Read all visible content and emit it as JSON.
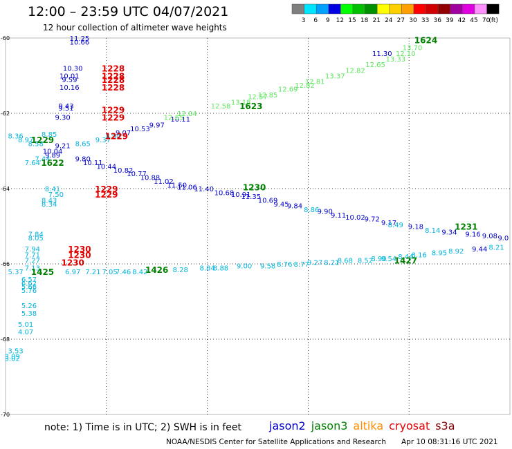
{
  "header": {
    "title": "12:00 – 23:59 UTC 04/07/2021",
    "subtitle": "12 hour collection of altimeter wave heights"
  },
  "colorbar": {
    "unit_label": "(ft)",
    "levels": [
      {
        "label": "3",
        "color": "#7f7f7f"
      },
      {
        "label": "6",
        "color": "#00e5ff"
      },
      {
        "label": "9",
        "color": "#00a0ff"
      },
      {
        "label": "12",
        "color": "#0000e0"
      },
      {
        "label": "15",
        "color": "#00ff00"
      },
      {
        "label": "18",
        "color": "#00c000"
      },
      {
        "label": "21",
        "color": "#009000"
      },
      {
        "label": "24",
        "color": "#ffff00"
      },
      {
        "label": "27",
        "color": "#ffd000"
      },
      {
        "label": "30",
        "color": "#ffa000"
      },
      {
        "label": "33",
        "color": "#ff0000"
      },
      {
        "label": "36",
        "color": "#d00000"
      },
      {
        "label": "39",
        "color": "#900000"
      },
      {
        "label": "42",
        "color": "#a000a0"
      },
      {
        "label": "45",
        "color": "#e000e0"
      },
      {
        "label": "70",
        "color": "#ff90ff"
      },
      {
        "label": "",
        "color": "#000000"
      }
    ]
  },
  "map": {
    "lon_ticks": [
      "-30",
      "-27",
      "-24",
      "-21",
      "-18",
      "-15"
    ],
    "lat_ticks": [
      "-60",
      "-62",
      "-64",
      "-66",
      "-68",
      "-70"
    ],
    "lon_range": [
      -30,
      -15
    ],
    "lat_range": [
      -60,
      -70
    ],
    "series_colors": {
      "jason2": "#0000c8",
      "jason3": "#008000",
      "altika": "#ff8c00",
      "cryosat": "#e00000",
      "s3a": "#800000",
      "cyan": "#00b4dc",
      "green": "#5ae65a"
    },
    "time_labels": [
      {
        "text": "1228",
        "lon": -26.8,
        "lat": -60.8,
        "color": "cryosat"
      },
      {
        "text": "1228",
        "lon": -26.8,
        "lat": -61.0,
        "color": "cryosat"
      },
      {
        "text": "1228",
        "lon": -26.8,
        "lat": -61.1,
        "color": "cryosat"
      },
      {
        "text": "1228",
        "lon": -26.8,
        "lat": -61.3,
        "color": "cryosat"
      },
      {
        "text": "1229",
        "lon": -26.8,
        "lat": -61.9,
        "color": "cryosat"
      },
      {
        "text": "1229",
        "lon": -26.8,
        "lat": -62.1,
        "color": "cryosat"
      },
      {
        "text": "1229",
        "lon": -26.7,
        "lat": -62.6,
        "color": "cryosat"
      },
      {
        "text": "1229",
        "lon": -28.9,
        "lat": -62.7,
        "color": "jason3"
      },
      {
        "text": "1622",
        "lon": -28.6,
        "lat": -63.3,
        "color": "jason3"
      },
      {
        "text": "1229",
        "lon": -27.0,
        "lat": -64.0,
        "color": "cryosat"
      },
      {
        "text": "1229",
        "lon": -27.0,
        "lat": -64.15,
        "color": "cryosat"
      },
      {
        "text": "1230",
        "lon": -27.8,
        "lat": -65.6,
        "color": "cryosat"
      },
      {
        "text": "1230",
        "lon": -27.8,
        "lat": -65.75,
        "color": "cryosat"
      },
      {
        "text": "1230",
        "lon": -28.0,
        "lat": -65.95,
        "color": "cryosat"
      },
      {
        "text": "1425",
        "lon": -28.9,
        "lat": -66.2,
        "color": "jason3"
      },
      {
        "text": "1426",
        "lon": -25.5,
        "lat": -66.15,
        "color": "jason3"
      },
      {
        "text": "1427",
        "lon": -18.1,
        "lat": -65.9,
        "color": "jason3"
      },
      {
        "text": "1230",
        "lon": -22.6,
        "lat": -63.95,
        "color": "jason3"
      },
      {
        "text": "1231",
        "lon": -16.3,
        "lat": -65.0,
        "color": "jason3"
      },
      {
        "text": "1623",
        "lon": -22.7,
        "lat": -61.8,
        "color": "jason3"
      },
      {
        "text": "1624",
        "lon": -17.5,
        "lat": -60.05,
        "color": "jason3"
      }
    ],
    "tracks": [
      {
        "color": "jason2",
        "points": [
          {
            "v": "11.25",
            "lon": -27.8,
            "lat": -60.0
          },
          {
            "v": "10.66",
            "lon": -27.8,
            "lat": -60.1
          },
          {
            "v": "10.30",
            "lon": -28.0,
            "lat": -60.8
          },
          {
            "v": "10.01",
            "lon": -28.1,
            "lat": -61.0
          },
          {
            "v": "9.59",
            "lon": -28.1,
            "lat": -61.1
          },
          {
            "v": "10.16",
            "lon": -28.1,
            "lat": -61.3
          },
          {
            "v": "9.43",
            "lon": -28.2,
            "lat": -61.8
          },
          {
            "v": "9.51",
            "lon": -28.2,
            "lat": -61.85
          },
          {
            "v": "9.30",
            "lon": -28.3,
            "lat": -62.1
          },
          {
            "v": "9.21",
            "lon": -28.3,
            "lat": -62.85
          },
          {
            "v": "10.04",
            "lon": -28.6,
            "lat": -63.0
          },
          {
            "v": "9.89",
            "lon": -28.6,
            "lat": -63.1
          },
          {
            "v": "9.80",
            "lon": -27.7,
            "lat": -63.2
          },
          {
            "v": "10.11",
            "lon": -27.4,
            "lat": -63.3
          },
          {
            "v": "10.44",
            "lon": -27.0,
            "lat": -63.4
          },
          {
            "v": "10.82",
            "lon": -26.5,
            "lat": -63.5
          },
          {
            "v": "10.77",
            "lon": -26.1,
            "lat": -63.6
          },
          {
            "v": "10.88",
            "lon": -25.7,
            "lat": -63.7
          },
          {
            "v": "11.02",
            "lon": -25.3,
            "lat": -63.8
          },
          {
            "v": "11.50",
            "lon": -24.9,
            "lat": -63.9
          },
          {
            "v": "11.06",
            "lon": -24.6,
            "lat": -63.95
          },
          {
            "v": "11.40",
            "lon": -24.1,
            "lat": -64.0
          },
          {
            "v": "10.68",
            "lon": -23.5,
            "lat": -64.1
          },
          {
            "v": "10.91",
            "lon": -23.0,
            "lat": -64.15
          },
          {
            "v": "11.35",
            "lon": -22.7,
            "lat": -64.2
          },
          {
            "v": "10.69",
            "lon": -22.2,
            "lat": -64.3
          },
          {
            "v": "9.45",
            "lon": -21.8,
            "lat": -64.4
          },
          {
            "v": "9.84",
            "lon": -21.4,
            "lat": -64.45
          },
          {
            "v": "9.90",
            "lon": -20.5,
            "lat": -64.6
          },
          {
            "v": "9.11",
            "lon": -20.1,
            "lat": -64.7
          },
          {
            "v": "10.02",
            "lon": -19.6,
            "lat": -64.75
          },
          {
            "v": "9.72",
            "lon": -19.1,
            "lat": -64.8
          },
          {
            "v": "9.17",
            "lon": -18.6,
            "lat": -64.9
          },
          {
            "v": "9.18",
            "lon": -17.8,
            "lat": -65.0
          },
          {
            "v": "9.34",
            "lon": -16.8,
            "lat": -65.15
          },
          {
            "v": "9.16",
            "lon": -16.1,
            "lat": -65.2
          },
          {
            "v": "9.08",
            "lon": -15.6,
            "lat": -65.25
          },
          {
            "v": "9.0",
            "lon": -15.2,
            "lat": -65.3
          },
          {
            "v": "9.44",
            "lon": -15.9,
            "lat": -65.6
          },
          {
            "v": "9.07",
            "lon": -26.5,
            "lat": -62.5
          },
          {
            "v": "10.53",
            "lon": -26.0,
            "lat": -62.4
          },
          {
            "v": "9.97",
            "lon": -25.5,
            "lat": -62.3
          },
          {
            "v": "10.11",
            "lon": -24.8,
            "lat": -62.15
          },
          {
            "v": "11.30",
            "lon": -18.8,
            "lat": -60.4
          }
        ]
      },
      {
        "color": "cyan",
        "points": [
          {
            "v": "8.36",
            "lon": -29.7,
            "lat": -62.6
          },
          {
            "v": "8.97",
            "lon": -29.4,
            "lat": -62.7
          },
          {
            "v": "8.85",
            "lon": -28.7,
            "lat": -62.55
          },
          {
            "v": "8.58",
            "lon": -29.1,
            "lat": -62.8
          },
          {
            "v": "8.65",
            "lon": -27.7,
            "lat": -62.8
          },
          {
            "v": "9.37",
            "lon": -27.1,
            "lat": -62.7
          },
          {
            "v": "8.94",
            "lon": -26.8,
            "lat": -62.6
          },
          {
            "v": "7.64",
            "lon": -29.2,
            "lat": -63.3
          },
          {
            "v": "7.44",
            "lon": -28.9,
            "lat": -63.2
          },
          {
            "v": "8.41",
            "lon": -28.6,
            "lat": -64.0
          },
          {
            "v": "7.50",
            "lon": -28.5,
            "lat": -64.15
          },
          {
            "v": "8.43",
            "lon": -28.7,
            "lat": -64.3
          },
          {
            "v": "8.34",
            "lon": -28.7,
            "lat": -64.4
          },
          {
            "v": "7.84",
            "lon": -29.1,
            "lat": -65.2
          },
          {
            "v": "8.05",
            "lon": -29.1,
            "lat": -65.3
          },
          {
            "v": "7.94",
            "lon": -29.2,
            "lat": -65.6
          },
          {
            "v": "7.71",
            "lon": -29.2,
            "lat": -65.75
          },
          {
            "v": "7.27",
            "lon": -29.2,
            "lat": -65.9
          },
          {
            "v": "7.13",
            "lon": -29.2,
            "lat": -66.1
          },
          {
            "v": "5.37",
            "lon": -29.7,
            "lat": -66.2
          },
          {
            "v": "6.57",
            "lon": -29.3,
            "lat": -66.4
          },
          {
            "v": "6.62",
            "lon": -29.3,
            "lat": -66.5
          },
          {
            "v": "5.66",
            "lon": -29.3,
            "lat": -66.6
          },
          {
            "v": "5.76",
            "lon": -29.3,
            "lat": -66.7
          },
          {
            "v": "5.26",
            "lon": -29.3,
            "lat": -67.1
          },
          {
            "v": "5.38",
            "lon": -29.3,
            "lat": -67.3
          },
          {
            "v": "5.01",
            "lon": -29.4,
            "lat": -67.6
          },
          {
            "v": "4.07",
            "lon": -29.4,
            "lat": -67.8
          },
          {
            "v": "3.53",
            "lon": -29.7,
            "lat": -68.3
          },
          {
            "v": "3.09",
            "lon": -29.8,
            "lat": -68.45
          },
          {
            "v": "3.02",
            "lon": -29.8,
            "lat": -68.5
          },
          {
            "v": "6.97",
            "lon": -28.0,
            "lat": -66.2
          },
          {
            "v": "7.21",
            "lon": -27.4,
            "lat": -66.2
          },
          {
            "v": "7.05",
            "lon": -26.9,
            "lat": -66.2
          },
          {
            "v": "7.46",
            "lon": -26.5,
            "lat": -66.2
          },
          {
            "v": "8.42",
            "lon": -26.0,
            "lat": -66.2
          },
          {
            "v": "8.28",
            "lon": -24.8,
            "lat": -66.15
          },
          {
            "v": "8.84",
            "lon": -24.0,
            "lat": -66.1
          },
          {
            "v": "8.88",
            "lon": -23.6,
            "lat": -66.1
          },
          {
            "v": "9.00",
            "lon": -22.9,
            "lat": -66.05
          },
          {
            "v": "9.58",
            "lon": -22.2,
            "lat": -66.05
          },
          {
            "v": "8.76",
            "lon": -21.7,
            "lat": -66.0
          },
          {
            "v": "8.77",
            "lon": -21.2,
            "lat": -66.0
          },
          {
            "v": "9.27",
            "lon": -20.8,
            "lat": -65.95
          },
          {
            "v": "8.21",
            "lon": -20.3,
            "lat": -65.95
          },
          {
            "v": "8.68",
            "lon": -19.9,
            "lat": -65.9
          },
          {
            "v": "8.52",
            "lon": -19.3,
            "lat": -65.9
          },
          {
            "v": "8.90",
            "lon": -18.9,
            "lat": -65.85
          },
          {
            "v": "8.44",
            "lon": -18.1,
            "lat": -65.8
          },
          {
            "v": "8.16",
            "lon": -17.7,
            "lat": -65.75
          },
          {
            "v": "8.95",
            "lon": -17.1,
            "lat": -65.7
          },
          {
            "v": "8.92",
            "lon": -16.6,
            "lat": -65.65
          },
          {
            "v": "8.21",
            "lon": -15.4,
            "lat": -65.55
          },
          {
            "v": "8.49",
            "lon": -18.4,
            "lat": -64.95
          },
          {
            "v": "8.14",
            "lon": -17.3,
            "lat": -65.1
          },
          {
            "v": "8.86",
            "lon": -20.9,
            "lat": -64.55
          },
          {
            "v": "9.54",
            "lon": -18.6,
            "lat": -65.85
          }
        ]
      },
      {
        "color": "green",
        "points": [
          {
            "v": "12.65",
            "lon": -25.0,
            "lat": -62.1
          },
          {
            "v": "12.04",
            "lon": -24.6,
            "lat": -62.0
          },
          {
            "v": "12.58",
            "lon": -23.6,
            "lat": -61.8
          },
          {
            "v": "13.18",
            "lon": -23.0,
            "lat": -61.7
          },
          {
            "v": "12.57",
            "lon": -22.5,
            "lat": -61.55
          },
          {
            "v": "12.85",
            "lon": -22.2,
            "lat": -61.5
          },
          {
            "v": "12.69",
            "lon": -21.6,
            "lat": -61.35
          },
          {
            "v": "12.82",
            "lon": -21.1,
            "lat": -61.25
          },
          {
            "v": "12.81",
            "lon": -20.8,
            "lat": -61.15
          },
          {
            "v": "13.37",
            "lon": -20.2,
            "lat": -61.0
          },
          {
            "v": "12.82",
            "lon": -19.6,
            "lat": -60.85
          },
          {
            "v": "12.65",
            "lon": -19.0,
            "lat": -60.7
          },
          {
            "v": "13.33",
            "lon": -18.4,
            "lat": -60.55
          },
          {
            "v": "12.10",
            "lon": -18.1,
            "lat": -60.4
          },
          {
            "v": "13.70",
            "lon": -17.9,
            "lat": -60.25
          }
        ]
      }
    ]
  },
  "footer": {
    "note": "note: 1) Time is in UTC; 2) SWH is in feet",
    "credit": "NOAA/NESDIS Center for Satellite Applications and Research",
    "timestamp": "Apr 10 08:31:16 UTC 2021"
  },
  "legend": [
    {
      "label": "jason2",
      "color": "jason2"
    },
    {
      "label": "jason3",
      "color": "jason3"
    },
    {
      "label": "altika",
      "color": "altika"
    },
    {
      "label": "cryosat",
      "color": "cryosat"
    },
    {
      "label": "s3a",
      "color": "s3a"
    }
  ]
}
